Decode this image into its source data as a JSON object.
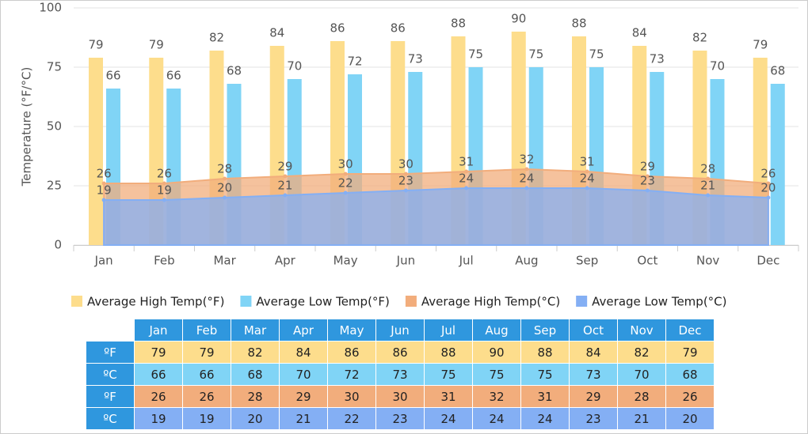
{
  "chart_data": {
    "type": "bar-area",
    "y_label": "Temperature (°F/°C)",
    "categories": [
      "Jan",
      "Feb",
      "Mar",
      "Apr",
      "May",
      "Jun",
      "Jul",
      "Aug",
      "Sep",
      "Oct",
      "Nov",
      "Dec"
    ],
    "ylim": [
      0,
      100
    ],
    "yticks": [
      0,
      25,
      50,
      75,
      100
    ],
    "grid": true,
    "series": [
      {
        "name": "Average High Temp(°F)",
        "kind": "bar",
        "color": "#fddd8c",
        "values": [
          79,
          79,
          82,
          84,
          86,
          86,
          88,
          90,
          88,
          84,
          82,
          79
        ]
      },
      {
        "name": "Average Low Temp(°F)",
        "kind": "bar",
        "color": "#80d4f6",
        "values": [
          66,
          66,
          68,
          70,
          72,
          73,
          75,
          75,
          75,
          73,
          70,
          68
        ]
      },
      {
        "name": "Average High Temp(°C)",
        "kind": "area",
        "color": "#f2ad7c",
        "values": [
          26,
          26,
          28,
          29,
          30,
          30,
          31,
          32,
          31,
          29,
          28,
          26
        ]
      },
      {
        "name": "Average Low Temp(°C)",
        "kind": "area",
        "color": "#84aff4",
        "values": [
          19,
          19,
          20,
          21,
          22,
          23,
          24,
          24,
          24,
          23,
          21,
          20
        ]
      }
    ]
  },
  "table": {
    "row_labels": [
      "ºF",
      "ºC",
      "ºF",
      "ºC"
    ]
  }
}
